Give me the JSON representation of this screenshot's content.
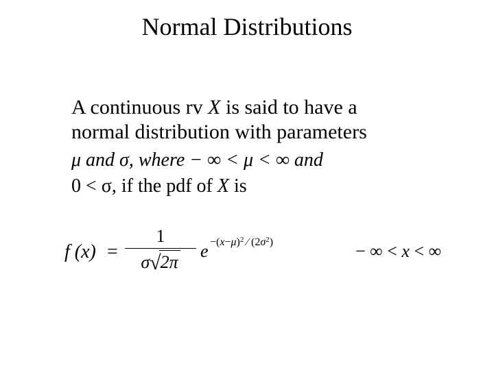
{
  "title": "Normal Distributions",
  "body": {
    "line1_pre": "A continuous rv ",
    "line1_var": "X",
    "line1_post": " is said to have a",
    "line2": "normal distribution with parameters"
  },
  "math": {
    "line1": "μ and σ,  where  − ∞ < μ < ∞  and",
    "line2_pre": "0 < σ,  if the pdf of ",
    "line2_var": "X",
    "line2_post": "  is"
  },
  "formula": {
    "fx": "f (x)",
    "eq": "=",
    "num": "1",
    "den_sigma": "σ",
    "den_2pi": "2π",
    "e": "e",
    "exp_text": "−(x−μ)² ∕ (2σ²)",
    "domain": "− ∞ < x < ∞"
  },
  "style": {
    "background": "#ffffff",
    "text_color": "#000000",
    "title_fontsize": 36,
    "body_fontsize": 30,
    "math_fontsize": 28,
    "formula_fontsize": 28,
    "font_family": "Times New Roman"
  }
}
